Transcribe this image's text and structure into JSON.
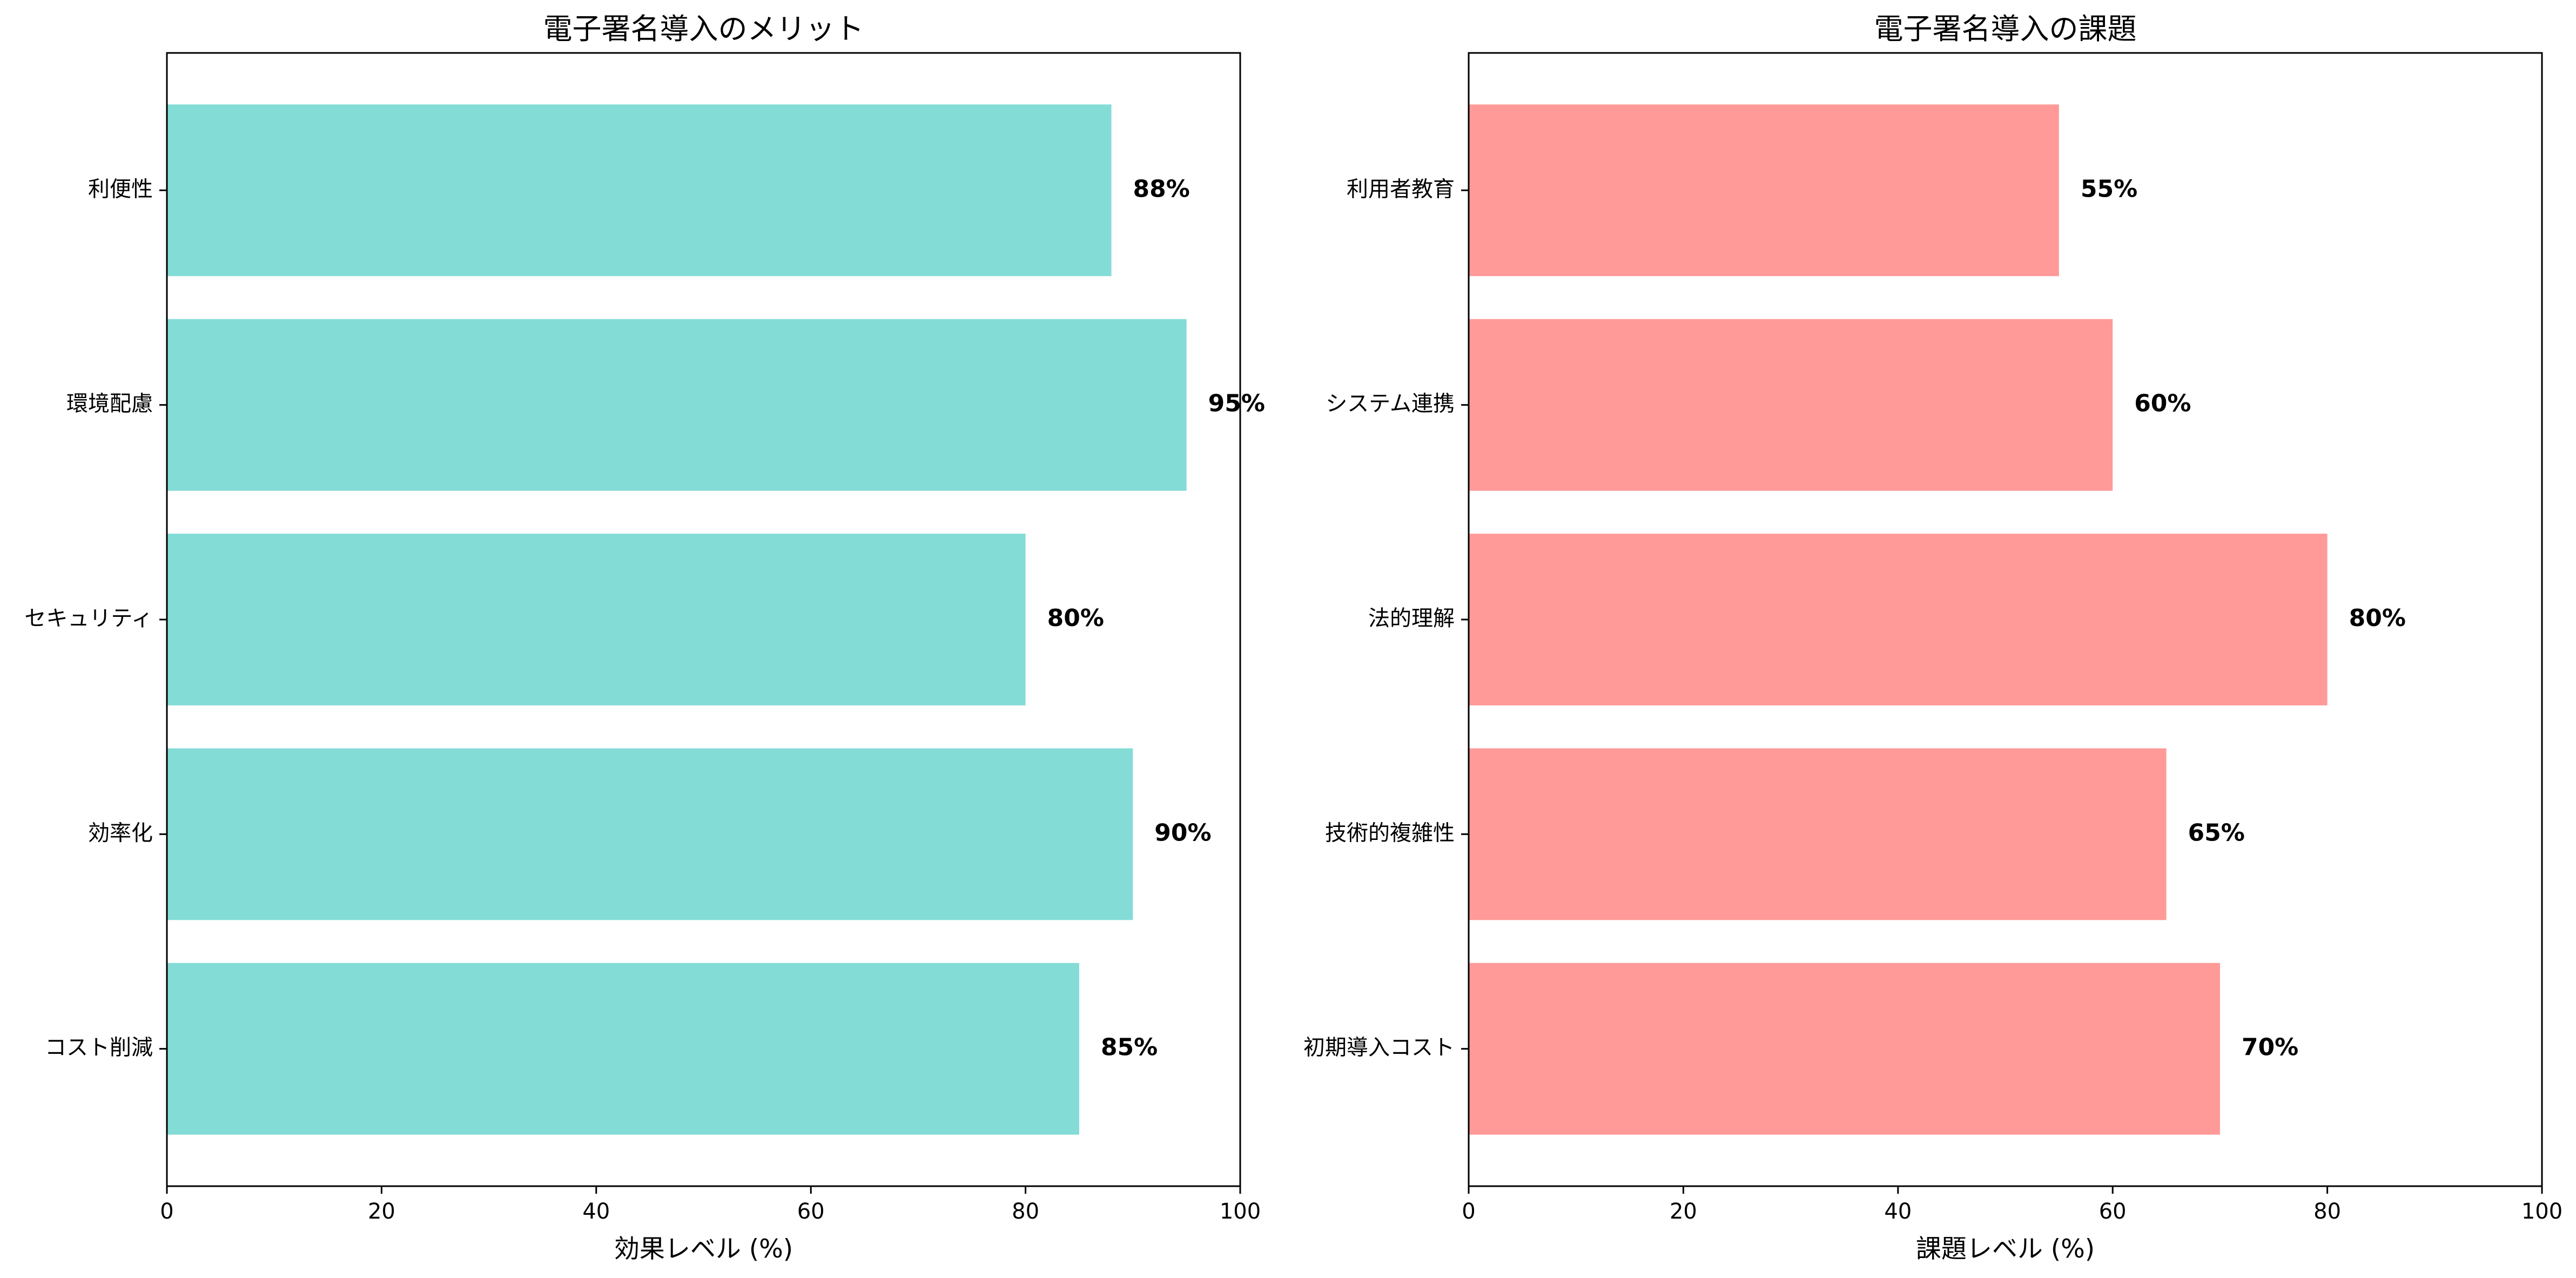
{
  "chart_data": [
    {
      "type": "bar",
      "orientation": "horizontal",
      "title": "電子署名導入のメリット",
      "xlabel": "効果レベル (%)",
      "ylabel": "",
      "xlim": [
        0,
        100
      ],
      "xticks": [
        0,
        20,
        40,
        60,
        80,
        100
      ],
      "categories": [
        "コスト削減",
        "効率化",
        "セキュリティ",
        "環境配慮",
        "利便性"
      ],
      "values": [
        85,
        90,
        80,
        95,
        88
      ],
      "data_labels": [
        "85%",
        "90%",
        "80%",
        "95%",
        "88%"
      ],
      "color": "#84dcd6",
      "grid": false
    },
    {
      "type": "bar",
      "orientation": "horizontal",
      "title": "電子署名導入の課題",
      "xlabel": "課題レベル (%)",
      "ylabel": "",
      "xlim": [
        0,
        100
      ],
      "xticks": [
        0,
        20,
        40,
        60,
        80,
        100
      ],
      "categories": [
        "初期導入コスト",
        "技術的複雑性",
        "法的理解",
        "システム連携",
        "利用者教育"
      ],
      "values": [
        70,
        65,
        80,
        60,
        55
      ],
      "data_labels": [
        "70%",
        "65%",
        "80%",
        "60%",
        "55%"
      ],
      "color": "#ff9a98",
      "grid": false
    }
  ]
}
